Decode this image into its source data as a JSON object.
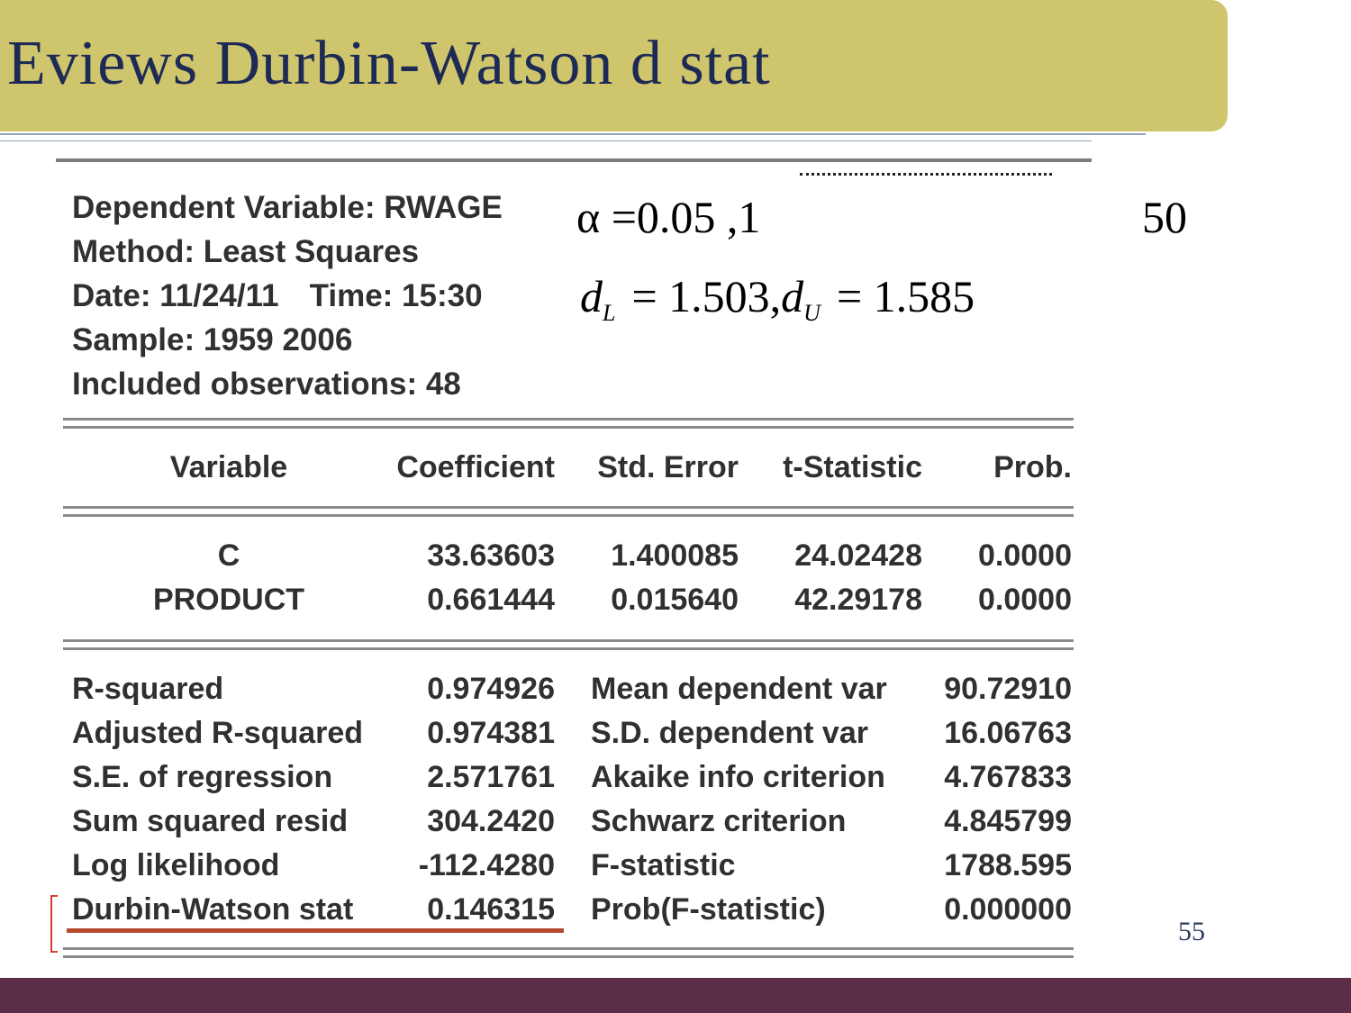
{
  "slide": {
    "title": "Eviews Durbin-Watson d stat",
    "page_number": "55"
  },
  "critical_values": {
    "line1": "α =0.05 ,1",
    "n": "50",
    "dL_symbol": "d",
    "dL_sub": "L",
    "dL_value": "= 1.503,",
    "dU_symbol": "d",
    "dU_sub": "U",
    "dU_value": "= 1.585"
  },
  "eviews": {
    "meta": [
      "Dependent Variable: RWAGE",
      "Method: Least Squares",
      "Date: 11/24/11",
      "Time: 15:30",
      "Sample: 1959 2006",
      "Included observations: 48"
    ],
    "headers": [
      "Variable",
      "Coefficient",
      "Std. Error",
      "t-Statistic",
      "Prob."
    ],
    "rows": [
      [
        "C",
        "33.63603",
        "1.400085",
        "24.02428",
        "0.0000"
      ],
      [
        "PRODUCT",
        "0.661444",
        "0.015640",
        "42.29178",
        "0.0000"
      ]
    ],
    "stats": [
      [
        "R-squared",
        "0.974926",
        "Mean dependent var",
        "90.72910"
      ],
      [
        "Adjusted R-squared",
        "0.974381",
        "S.D. dependent var",
        "16.06763"
      ],
      [
        "S.E. of regression",
        "2.571761",
        "Akaike info criterion",
        "4.767833"
      ],
      [
        "Sum squared resid",
        "304.2420",
        "Schwarz criterion",
        "4.845799"
      ],
      [
        "Log likelihood",
        "-112.4280",
        "F-statistic",
        "1788.595"
      ],
      [
        "Durbin-Watson stat",
        "0.146315",
        "Prob(F-statistic)",
        "0.000000"
      ]
    ]
  },
  "colors": {
    "title_bar": "#cfc56d",
    "title_text": "#1d2a55",
    "footer_bar": "#5c2d47",
    "highlight_underline": "#b54a2f"
  }
}
